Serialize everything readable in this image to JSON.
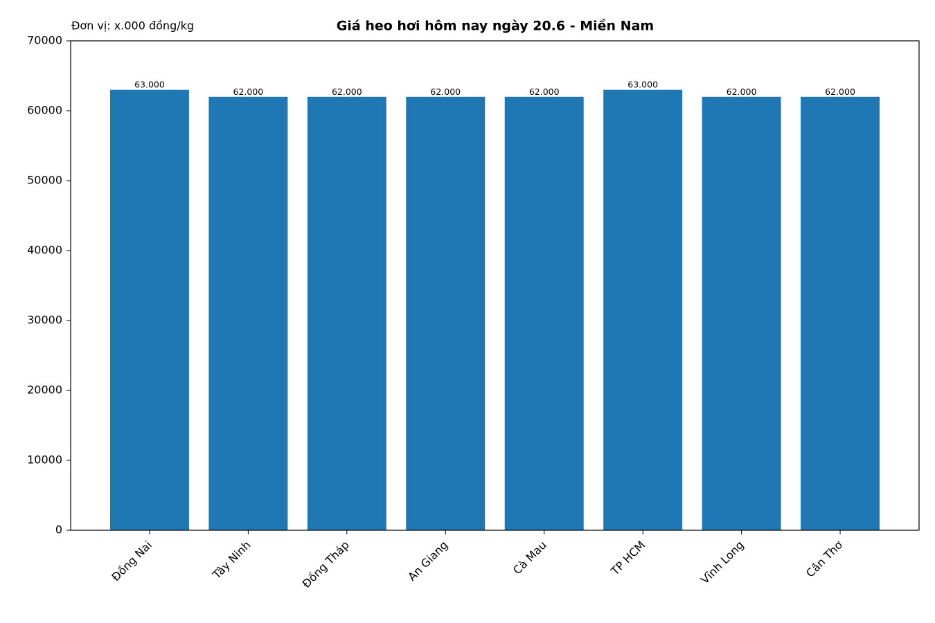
{
  "chart_data": {
    "type": "bar",
    "title": "Giá heo hơi hôm nay ngày 20.6 - Miền Nam",
    "annotation": "Đơn vị: x.000 đồng/kg",
    "categories": [
      "Đồng Nai",
      "Tây Ninh",
      "Đồng Tháp",
      "An Giang",
      "Cà Mau",
      "TP HCM",
      "Vĩnh Long",
      "Cần Thơ"
    ],
    "values": [
      63000,
      62000,
      62000,
      62000,
      62000,
      63000,
      62000,
      62000
    ],
    "value_labels": [
      "63.000",
      "62.000",
      "62.000",
      "62.000",
      "62.000",
      "63.000",
      "62.000",
      "62.000"
    ],
    "color": "#1f77b4",
    "ylim": [
      0,
      70000
    ],
    "yticks": [
      0,
      10000,
      20000,
      30000,
      40000,
      50000,
      60000,
      70000
    ],
    "grid": false
  }
}
